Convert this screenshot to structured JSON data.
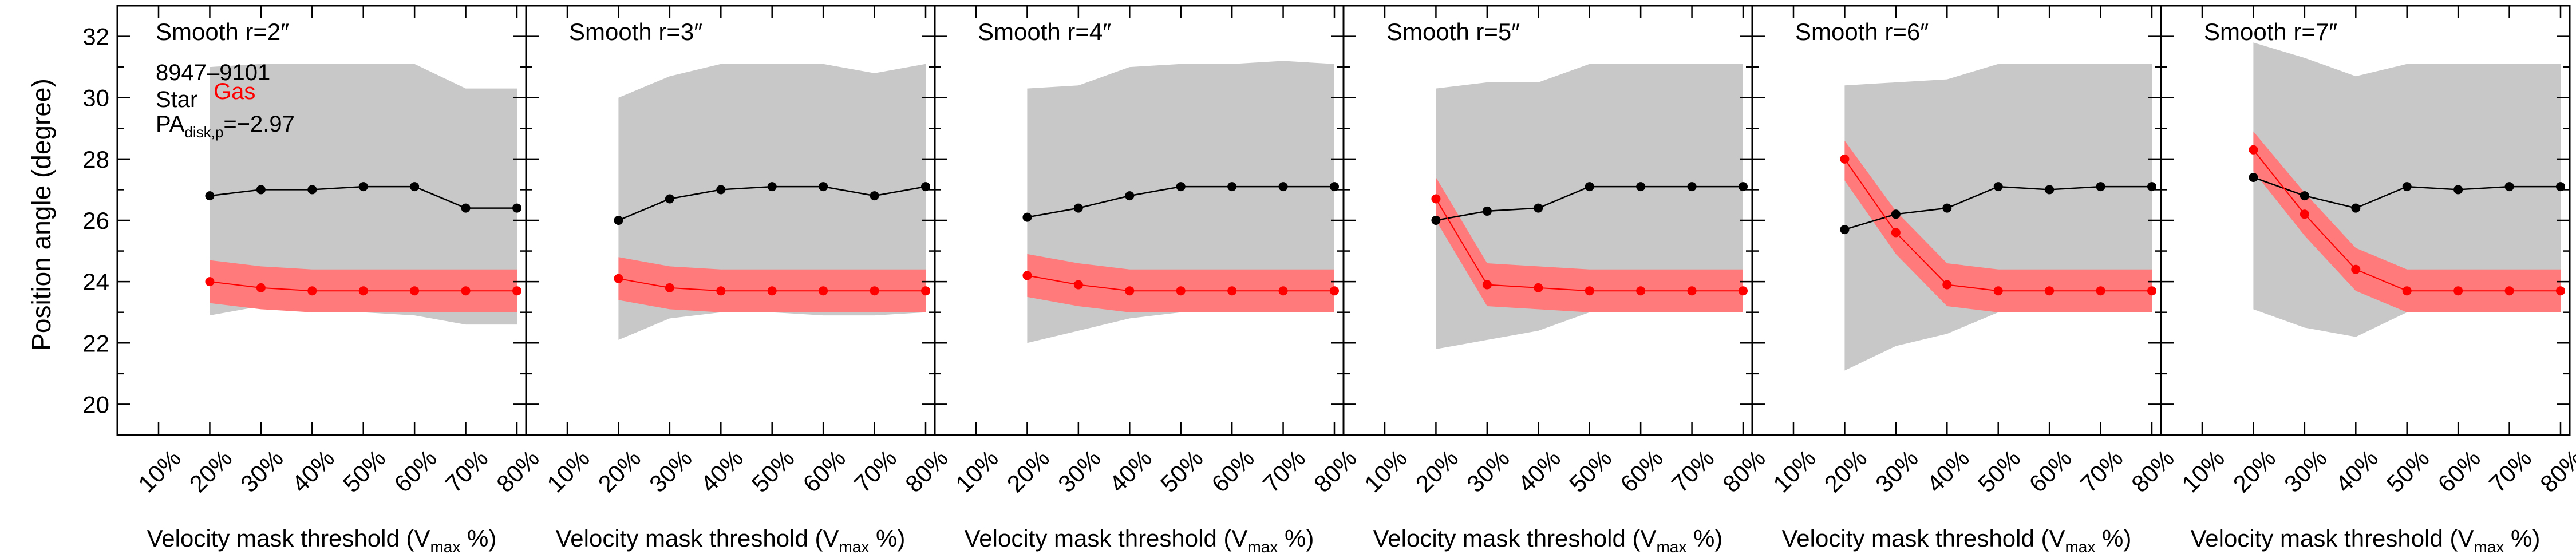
{
  "figure": {
    "ylabel": "Position angle (degree)",
    "xlabel_main": "Velocity mask threshold (V",
    "xlabel_sub": "max",
    "xlabel_tail": " %)",
    "info": {
      "galaxy_id": "8947–9101",
      "star_label": "Star",
      "gas_label": "Gas",
      "pa_main": "PA",
      "pa_sub": "disk,p",
      "pa_value": "=−2.97"
    },
    "colors": {
      "star": "#000000",
      "gas": "#ff0000",
      "star_band": "#c8c8c8",
      "gas_band": "#ff7a7a"
    }
  },
  "chart_data": [
    {
      "type": "line",
      "title": "Smooth r=2″",
      "x": [
        "10%",
        "20%",
        "30%",
        "40%",
        "50%",
        "60%",
        "70%",
        "80%"
      ],
      "xlim": [
        0,
        7
      ],
      "ylim": [
        19,
        33
      ],
      "yticks": [
        20,
        22,
        24,
        26,
        28,
        30,
        32
      ],
      "series": [
        {
          "name": "Star",
          "x": [
            1,
            2,
            3,
            4,
            5,
            6,
            7
          ],
          "y": [
            26.8,
            27.0,
            27.0,
            27.1,
            27.1,
            26.4,
            26.4
          ],
          "lower": [
            22.9,
            23.2,
            23.1,
            23.0,
            22.9,
            22.6,
            22.6
          ],
          "upper": [
            31.0,
            31.1,
            31.1,
            31.1,
            31.1,
            30.3,
            30.3
          ]
        },
        {
          "name": "Gas",
          "x": [
            1,
            2,
            3,
            4,
            5,
            6,
            7
          ],
          "y": [
            24.0,
            23.8,
            23.7,
            23.7,
            23.7,
            23.7,
            23.7
          ],
          "lower": [
            23.3,
            23.1,
            23.0,
            23.0,
            23.0,
            23.0,
            23.0
          ],
          "upper": [
            24.7,
            24.5,
            24.4,
            24.4,
            24.4,
            24.4,
            24.4
          ]
        }
      ]
    },
    {
      "type": "line",
      "title": "Smooth r=3″",
      "x": [
        "10%",
        "20%",
        "30%",
        "40%",
        "50%",
        "60%",
        "70%",
        "80%"
      ],
      "xlim": [
        0,
        7
      ],
      "ylim": [
        19,
        33
      ],
      "yticks": [
        20,
        22,
        24,
        26,
        28,
        30,
        32
      ],
      "series": [
        {
          "name": "Star",
          "x": [
            1,
            2,
            3,
            4,
            5,
            6,
            7
          ],
          "y": [
            26.0,
            26.7,
            27.0,
            27.1,
            27.1,
            26.8,
            27.1
          ],
          "lower": [
            22.1,
            22.8,
            23.0,
            23.0,
            22.9,
            22.9,
            23.0
          ],
          "upper": [
            30.0,
            30.7,
            31.1,
            31.1,
            31.1,
            30.8,
            31.1
          ]
        },
        {
          "name": "Gas",
          "x": [
            1,
            2,
            3,
            4,
            5,
            6,
            7
          ],
          "y": [
            24.1,
            23.8,
            23.7,
            23.7,
            23.7,
            23.7,
            23.7
          ],
          "lower": [
            23.4,
            23.1,
            23.0,
            23.0,
            23.0,
            23.0,
            23.0
          ],
          "upper": [
            24.8,
            24.5,
            24.4,
            24.4,
            24.4,
            24.4,
            24.4
          ]
        }
      ]
    },
    {
      "type": "line",
      "title": "Smooth r=4″",
      "x": [
        "10%",
        "20%",
        "30%",
        "40%",
        "50%",
        "60%",
        "70%",
        "80%"
      ],
      "xlim": [
        0,
        7
      ],
      "ylim": [
        19,
        33
      ],
      "yticks": [
        20,
        22,
        24,
        26,
        28,
        30,
        32
      ],
      "series": [
        {
          "name": "Star",
          "x": [
            1,
            2,
            3,
            4,
            5,
            6,
            7
          ],
          "y": [
            26.1,
            26.4,
            26.8,
            27.1,
            27.1,
            27.1,
            27.1
          ],
          "lower": [
            22.0,
            22.4,
            22.8,
            23.0,
            23.0,
            23.0,
            23.0
          ],
          "upper": [
            30.3,
            30.4,
            31.0,
            31.1,
            31.1,
            31.2,
            31.1
          ]
        },
        {
          "name": "Gas",
          "x": [
            1,
            2,
            3,
            4,
            5,
            6,
            7
          ],
          "y": [
            24.2,
            23.9,
            23.7,
            23.7,
            23.7,
            23.7,
            23.7
          ],
          "lower": [
            23.5,
            23.2,
            23.0,
            23.0,
            23.0,
            23.0,
            23.0
          ],
          "upper": [
            24.9,
            24.6,
            24.4,
            24.4,
            24.4,
            24.4,
            24.4
          ]
        }
      ]
    },
    {
      "type": "line",
      "title": "Smooth r=5″",
      "x": [
        "10%",
        "20%",
        "30%",
        "40%",
        "50%",
        "60%",
        "70%",
        "80%"
      ],
      "xlim": [
        0,
        7
      ],
      "ylim": [
        19,
        33
      ],
      "yticks": [
        20,
        22,
        24,
        26,
        28,
        30,
        32
      ],
      "series": [
        {
          "name": "Star",
          "x": [
            1,
            2,
            3,
            4,
            5,
            6,
            7
          ],
          "y": [
            26.0,
            26.3,
            26.4,
            27.1,
            27.1,
            27.1,
            27.1
          ],
          "lower": [
            21.8,
            22.1,
            22.4,
            23.0,
            23.0,
            23.0,
            23.0
          ],
          "upper": [
            30.3,
            30.5,
            30.5,
            31.1,
            31.1,
            31.1,
            31.1
          ]
        },
        {
          "name": "Gas",
          "x": [
            1,
            2,
            3,
            4,
            5,
            6,
            7
          ],
          "y": [
            26.7,
            23.9,
            23.8,
            23.7,
            23.7,
            23.7,
            23.7
          ],
          "lower": [
            26.0,
            23.2,
            23.1,
            23.0,
            23.0,
            23.0,
            23.0
          ],
          "upper": [
            27.4,
            24.6,
            24.5,
            24.4,
            24.4,
            24.4,
            24.4
          ]
        }
      ]
    },
    {
      "type": "line",
      "title": "Smooth r=6″",
      "x": [
        "10%",
        "20%",
        "30%",
        "40%",
        "50%",
        "60%",
        "70%",
        "80%"
      ],
      "xlim": [
        0,
        7
      ],
      "ylim": [
        19,
        33
      ],
      "yticks": [
        20,
        22,
        24,
        26,
        28,
        30,
        32
      ],
      "series": [
        {
          "name": "Star",
          "x": [
            1,
            2,
            3,
            4,
            5,
            6,
            7
          ],
          "y": [
            25.7,
            26.2,
            26.4,
            27.1,
            27.0,
            27.1,
            27.1
          ],
          "lower": [
            21.1,
            21.9,
            22.3,
            23.0,
            23.0,
            23.0,
            23.0
          ],
          "upper": [
            30.4,
            30.5,
            30.6,
            31.1,
            31.1,
            31.1,
            31.1
          ]
        },
        {
          "name": "Gas",
          "x": [
            1,
            2,
            3,
            4,
            5,
            6,
            7
          ],
          "y": [
            28.0,
            25.6,
            23.9,
            23.7,
            23.7,
            23.7,
            23.7
          ],
          "lower": [
            27.3,
            24.9,
            23.2,
            23.0,
            23.0,
            23.0,
            23.0
          ],
          "upper": [
            28.6,
            26.3,
            24.6,
            24.4,
            24.4,
            24.4,
            24.4
          ]
        }
      ]
    },
    {
      "type": "line",
      "title": "Smooth r=7″",
      "x": [
        "10%",
        "20%",
        "30%",
        "40%",
        "50%",
        "60%",
        "70%",
        "80%"
      ],
      "xlim": [
        0,
        7
      ],
      "ylim": [
        19,
        33
      ],
      "yticks": [
        20,
        22,
        24,
        26,
        28,
        30,
        32
      ],
      "series": [
        {
          "name": "Star",
          "x": [
            1,
            2,
            3,
            4,
            5,
            6,
            7
          ],
          "y": [
            27.4,
            26.8,
            26.4,
            27.1,
            27.0,
            27.1,
            27.1
          ],
          "lower": [
            23.1,
            22.5,
            22.2,
            23.0,
            23.0,
            23.0,
            23.0
          ],
          "upper": [
            31.8,
            31.3,
            30.7,
            31.1,
            31.1,
            31.1,
            31.1
          ]
        },
        {
          "name": "Gas",
          "x": [
            1,
            2,
            3,
            4,
            5,
            6,
            7
          ],
          "y": [
            28.3,
            26.2,
            24.4,
            23.7,
            23.7,
            23.7,
            23.7
          ],
          "lower": [
            27.6,
            25.5,
            23.7,
            23.0,
            23.0,
            23.0,
            23.0
          ],
          "upper": [
            28.9,
            26.9,
            25.1,
            24.4,
            24.4,
            24.4,
            24.4
          ]
        }
      ]
    }
  ]
}
